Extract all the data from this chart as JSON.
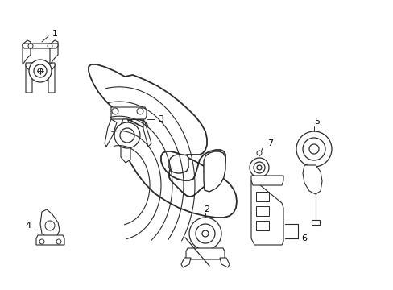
{
  "bg_color": "#ffffff",
  "line_color": "#2a2a2a",
  "label_color": "#000000",
  "fig_width": 4.89,
  "fig_height": 3.6,
  "dpi": 100,
  "engine": {
    "left_outline_x": [
      0.3,
      0.27,
      0.255,
      0.245,
      0.24,
      0.238,
      0.24,
      0.248,
      0.26,
      0.275,
      0.295,
      0.32,
      0.355,
      0.375
    ],
    "left_outline_y": [
      0.95,
      0.92,
      0.88,
      0.83,
      0.77,
      0.7,
      0.62,
      0.54,
      0.46,
      0.38,
      0.3,
      0.22,
      0.15,
      0.1
    ]
  }
}
